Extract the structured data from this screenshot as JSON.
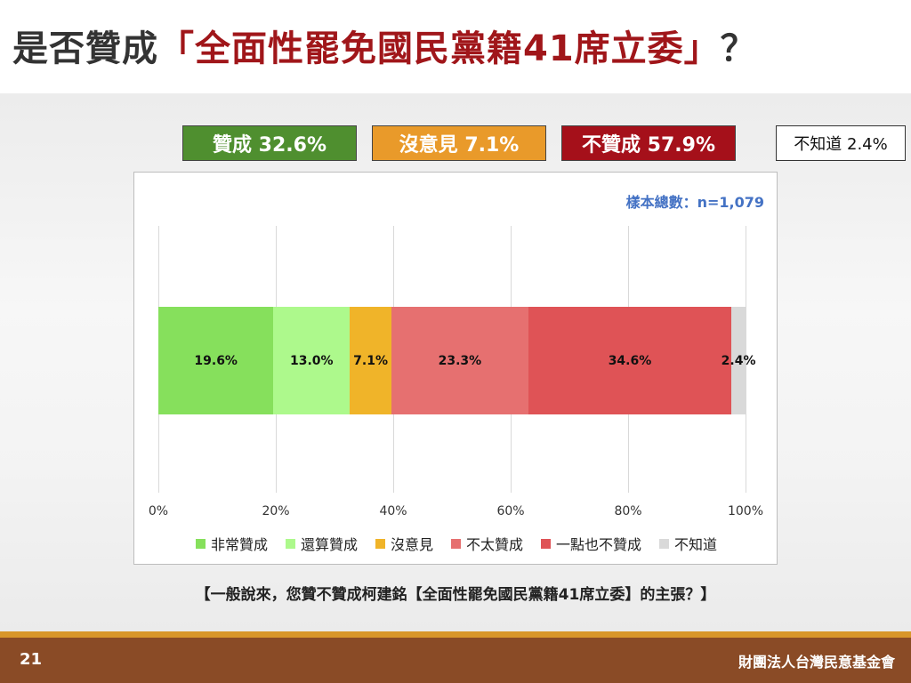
{
  "title": {
    "prefix": "是否贊成",
    "highlight": "「全面性罷免國民黨籍41席立委」",
    "suffix": "？"
  },
  "summary": {
    "approve": "贊成 32.6%",
    "no_opinion": "沒意見 7.1%",
    "disapprove": "不贊成 57.9%",
    "unknown": "不知道 2.4%"
  },
  "sample_size": "樣本總數：n=1,079",
  "question": "【一般說來，您贊不贊成柯建銘【全面性罷免國民黨籍41席立委】的主張？】",
  "footer": {
    "page_number": "21",
    "organization": "財團法人台灣民意基金會"
  },
  "chart_data": {
    "type": "bar",
    "orientation": "horizontal-stacked-100",
    "xlim": [
      0,
      100
    ],
    "x_ticks": [
      "0%",
      "20%",
      "40%",
      "60%",
      "80%",
      "100%"
    ],
    "grid": true,
    "legend_position": "bottom",
    "series": [
      {
        "name": "非常贊成",
        "value": 19.6,
        "label": "19.6%",
        "color": "#86e05c"
      },
      {
        "name": "還算贊成",
        "value": 13.0,
        "label": "13.0%",
        "color": "#adf98c"
      },
      {
        "name": "沒意見",
        "value": 7.1,
        "label": "7.1%",
        "color": "#f0b429"
      },
      {
        "name": "不太贊成",
        "value": 23.3,
        "label": "23.3%",
        "color": "#e67070"
      },
      {
        "name": "一點也不贊成",
        "value": 34.6,
        "label": "34.6%",
        "color": "#df5356"
      },
      {
        "name": "不知道",
        "value": 2.4,
        "label": "2.4%",
        "color": "#d9d9d9"
      }
    ]
  }
}
